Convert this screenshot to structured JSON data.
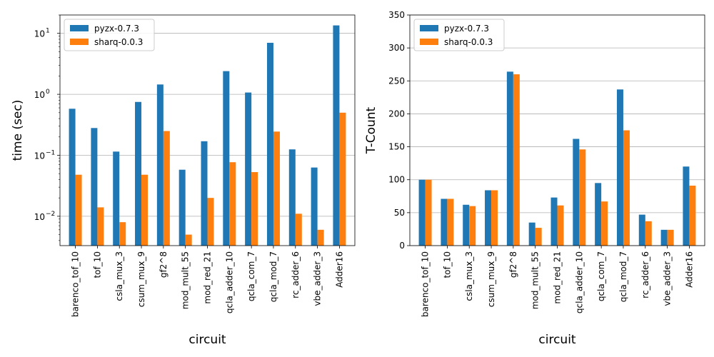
{
  "chart_data": [
    {
      "type": "bar",
      "xlabel": "circuit",
      "ylabel": "time (sec)",
      "yscale": "log",
      "ylim": [
        0.0033,
        20
      ],
      "yticks": [
        {
          "value": 0.01,
          "base": "10",
          "exp": "−2"
        },
        {
          "value": 0.1,
          "base": "10",
          "exp": "−1"
        },
        {
          "value": 1,
          "base": "10",
          "exp": "0"
        },
        {
          "value": 10,
          "base": "10",
          "exp": "1"
        }
      ],
      "grid": "horizontal",
      "legend_position": "top-left",
      "categories": [
        "barenco_tof_10",
        "tof_10",
        "csla_mux_3",
        "csum_mux_9",
        "gf2^8",
        "mod_mult_55",
        "mod_red_21",
        "qcla_adder_10",
        "qcla_com_7",
        "qcla_mod_7",
        "rc_adder_6",
        "vbe_adder_3",
        "Adder16"
      ],
      "series": [
        {
          "name": "pyzx-0.7.3",
          "color": "#1f77b4",
          "values": [
            0.58,
            0.28,
            0.115,
            0.75,
            1.45,
            0.058,
            0.17,
            2.4,
            1.07,
            7.0,
            0.125,
            0.063,
            13.5
          ]
        },
        {
          "name": "sharq-0.0.3",
          "color": "#ff7f0e",
          "values": [
            0.048,
            0.014,
            0.008,
            0.048,
            0.25,
            0.005,
            0.02,
            0.077,
            0.053,
            0.245,
            0.011,
            0.006,
            0.5
          ]
        }
      ]
    },
    {
      "type": "bar",
      "xlabel": "circuit",
      "ylabel": "T-Count",
      "yscale": "linear",
      "ylim": [
        0,
        350
      ],
      "yticks": [
        {
          "value": 0,
          "label": "0"
        },
        {
          "value": 50,
          "label": "50"
        },
        {
          "value": 100,
          "label": "100"
        },
        {
          "value": 150,
          "label": "150"
        },
        {
          "value": 200,
          "label": "200"
        },
        {
          "value": 250,
          "label": "250"
        },
        {
          "value": 300,
          "label": "300"
        },
        {
          "value": 350,
          "label": "350"
        }
      ],
      "grid": "horizontal",
      "legend_position": "top-left",
      "categories": [
        "barenco_tof_10",
        "tof_10",
        "csla_mux_3",
        "csum_mux_9",
        "gf2^8",
        "mod_mult_55",
        "mod_red_21",
        "qcla_adder_10",
        "qcla_com_7",
        "qcla_mod_7",
        "rc_adder_6",
        "vbe_adder_3",
        "Adder16"
      ],
      "series": [
        {
          "name": "pyzx-0.7.3",
          "color": "#1f77b4",
          "values": [
            100,
            71,
            62,
            84,
            264,
            35,
            73,
            162,
            95,
            237,
            47,
            24,
            120
          ]
        },
        {
          "name": "sharq-0.0.3",
          "color": "#ff7f0e",
          "values": [
            100,
            71,
            60,
            84,
            260,
            27,
            61,
            146,
            67,
            175,
            37,
            24,
            91
          ]
        }
      ]
    }
  ]
}
